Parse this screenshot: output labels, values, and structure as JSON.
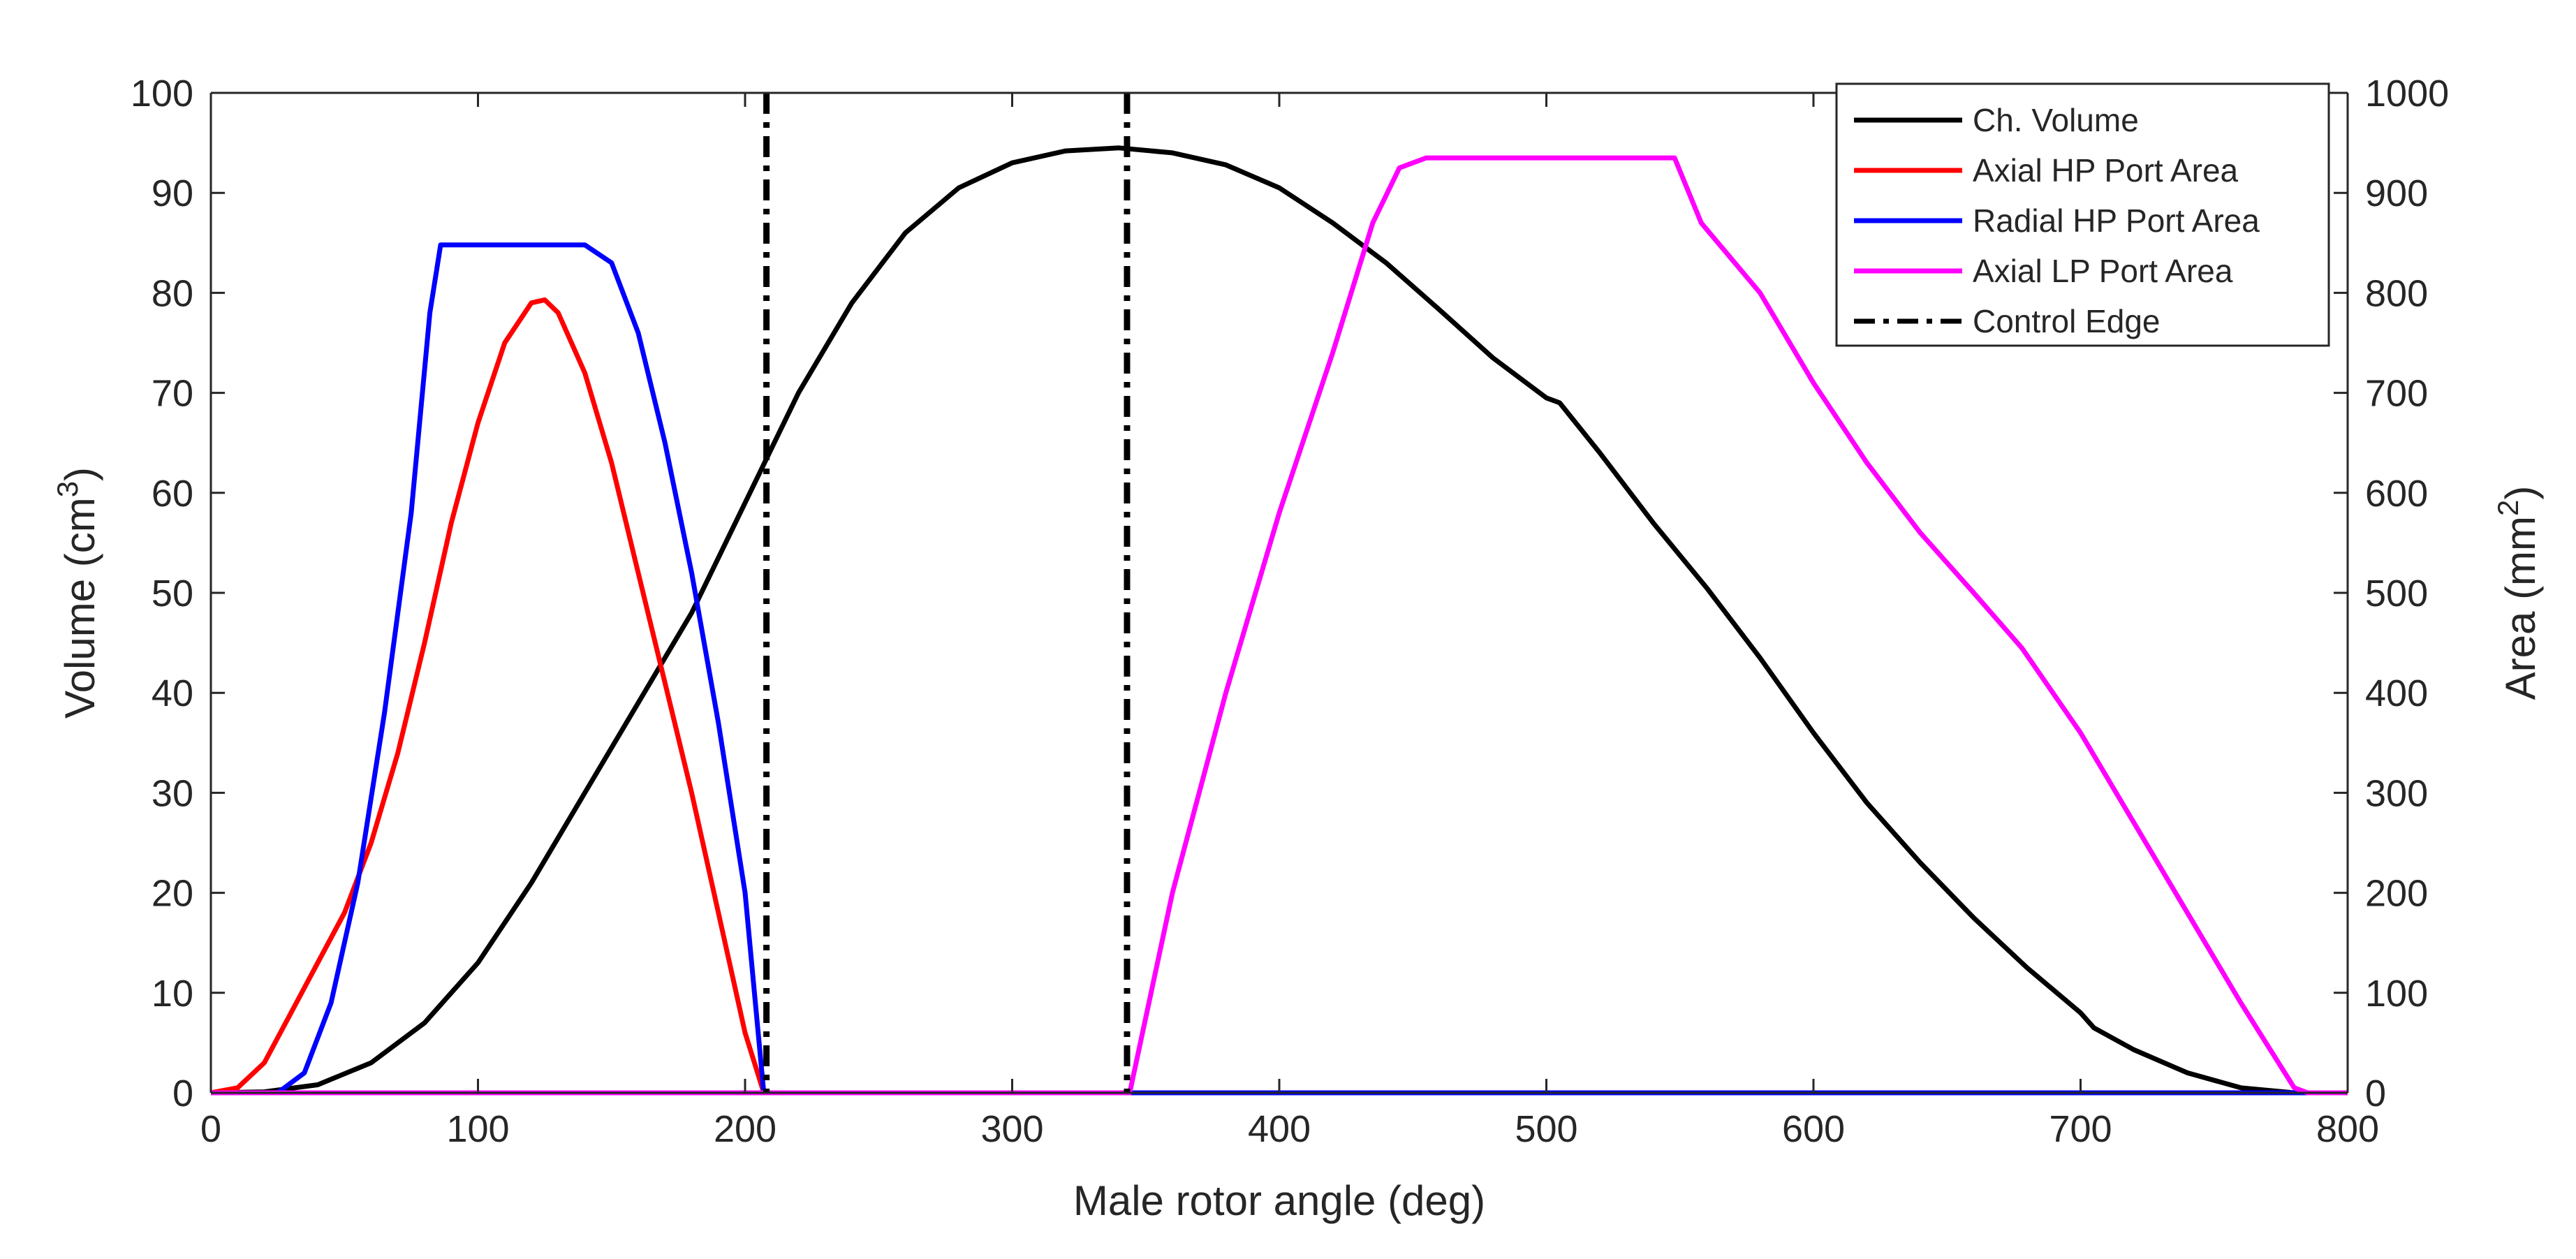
{
  "chart_data": {
    "type": "line",
    "title": "",
    "xlabel": "Male rotor angle (deg)",
    "ylabel_left": {
      "text": "Volume (cm",
      "sup": "3",
      "close": ")"
    },
    "ylabel_right": {
      "text": "Area (mm",
      "sup": "2",
      "close": ")"
    },
    "xlim": [
      0,
      800
    ],
    "ylim_left": [
      0,
      100
    ],
    "ylim_right": [
      0,
      1000
    ],
    "grid": false,
    "legend_position": "top-right",
    "x_ticks": [
      "0",
      "100",
      "200",
      "300",
      "400",
      "500",
      "600",
      "700",
      "800"
    ],
    "y_left_ticks": [
      "0",
      "10",
      "20",
      "30",
      "40",
      "50",
      "60",
      "70",
      "80",
      "90",
      "100"
    ],
    "y_right_ticks": [
      "0",
      "100",
      "200",
      "300",
      "400",
      "500",
      "600",
      "700",
      "800",
      "900",
      "1000"
    ],
    "series": [
      {
        "name": "Ch. Volume",
        "axis": "left",
        "color": "#000000",
        "style": "solid",
        "points": [
          [
            0,
            0
          ],
          [
            20,
            0.1
          ],
          [
            40,
            0.8
          ],
          [
            60,
            3
          ],
          [
            80,
            7
          ],
          [
            100,
            13
          ],
          [
            120,
            21
          ],
          [
            140,
            30
          ],
          [
            160,
            39
          ],
          [
            180,
            48
          ],
          [
            200,
            59
          ],
          [
            220,
            70
          ],
          [
            240,
            79
          ],
          [
            260,
            86
          ],
          [
            280,
            90.5
          ],
          [
            300,
            93
          ],
          [
            320,
            94.2
          ],
          [
            340,
            94.5
          ],
          [
            360,
            94
          ],
          [
            380,
            92.8
          ],
          [
            400,
            90.5
          ],
          [
            420,
            87
          ],
          [
            440,
            83
          ],
          [
            460,
            78.3
          ],
          [
            480,
            73.5
          ],
          [
            500,
            69.5
          ],
          [
            505,
            69
          ],
          [
            520,
            64
          ],
          [
            540,
            57
          ],
          [
            560,
            50.5
          ],
          [
            580,
            43.5
          ],
          [
            600,
            36
          ],
          [
            620,
            29
          ],
          [
            640,
            23
          ],
          [
            660,
            17.5
          ],
          [
            680,
            12.5
          ],
          [
            700,
            8
          ],
          [
            705,
            6.5
          ],
          [
            720,
            4.3
          ],
          [
            740,
            2
          ],
          [
            760,
            0.5
          ],
          [
            780,
            0
          ]
        ]
      },
      {
        "name": "Axial HP Port Area",
        "axis": "right",
        "color": "#ff0000",
        "style": "solid",
        "points": [
          [
            0,
            0
          ],
          [
            10,
            5
          ],
          [
            20,
            30
          ],
          [
            30,
            80
          ],
          [
            40,
            130
          ],
          [
            50,
            180
          ],
          [
            60,
            250
          ],
          [
            70,
            340
          ],
          [
            80,
            450
          ],
          [
            90,
            570
          ],
          [
            100,
            670
          ],
          [
            110,
            750
          ],
          [
            120,
            790
          ],
          [
            125,
            793
          ],
          [
            130,
            780
          ],
          [
            140,
            720
          ],
          [
            150,
            630
          ],
          [
            160,
            520
          ],
          [
            170,
            410
          ],
          [
            180,
            300
          ],
          [
            190,
            180
          ],
          [
            200,
            60
          ],
          [
            207,
            0
          ],
          [
            800,
            0
          ]
        ]
      },
      {
        "name": "Radial HP Port Area",
        "axis": "right",
        "color": "#0000ff",
        "style": "solid",
        "points": [
          [
            0,
            0
          ],
          [
            25,
            0
          ],
          [
            35,
            20
          ],
          [
            45,
            90
          ],
          [
            55,
            210
          ],
          [
            65,
            380
          ],
          [
            75,
            580
          ],
          [
            82,
            780
          ],
          [
            86,
            848
          ],
          [
            140,
            848
          ],
          [
            150,
            830
          ],
          [
            160,
            760
          ],
          [
            170,
            650
          ],
          [
            180,
            520
          ],
          [
            190,
            370
          ],
          [
            200,
            200
          ],
          [
            207,
            0
          ],
          [
            800,
            0
          ]
        ]
      },
      {
        "name": "Axial LP Port Area",
        "axis": "right",
        "color": "#ff00ff",
        "style": "solid",
        "points": [
          [
            0,
            0
          ],
          [
            344,
            0
          ],
          [
            360,
            200
          ],
          [
            380,
            400
          ],
          [
            400,
            580
          ],
          [
            420,
            740
          ],
          [
            435,
            870
          ],
          [
            445,
            925
          ],
          [
            455,
            935
          ],
          [
            548,
            935
          ],
          [
            558,
            870
          ],
          [
            580,
            800
          ],
          [
            600,
            710
          ],
          [
            620,
            630
          ],
          [
            640,
            560
          ],
          [
            660,
            500
          ],
          [
            678,
            445
          ],
          [
            700,
            360
          ],
          [
            720,
            270
          ],
          [
            740,
            180
          ],
          [
            760,
            90
          ],
          [
            780,
            5
          ],
          [
            785,
            0
          ],
          [
            800,
            0
          ]
        ]
      },
      {
        "name": "Control Edge",
        "axis": "left",
        "color": "#000000",
        "style": "dashdot",
        "vertical_lines_x": [
          208,
          343
        ]
      }
    ]
  }
}
